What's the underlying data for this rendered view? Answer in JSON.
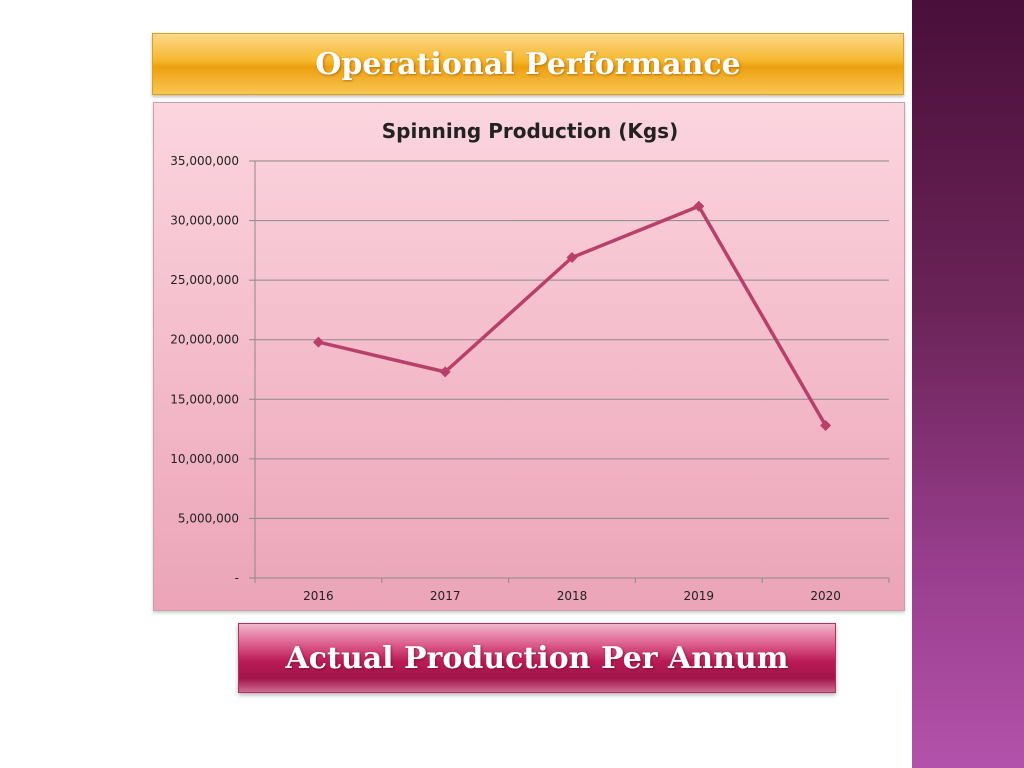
{
  "slide": {
    "title": "Operational Performance",
    "footer": "Actual Production Per Annum"
  },
  "colors": {
    "series": "#b8406a",
    "grid": "#8a8a8a",
    "axis_text": "#222222"
  },
  "chart_data": {
    "type": "line",
    "title": "Spinning Production (Kgs)",
    "categories": [
      "2016",
      "2017",
      "2018",
      "2019",
      "2020"
    ],
    "series": [
      {
        "name": "Spinning Production (Kgs)",
        "values": [
          19800000,
          17300000,
          26900000,
          31200000,
          12800000
        ]
      }
    ],
    "ylim": [
      0,
      35000000
    ],
    "yticks": [
      0,
      5000000,
      10000000,
      15000000,
      20000000,
      25000000,
      30000000,
      35000000
    ],
    "ytick_labels": [
      "-",
      "5,000,000",
      "10,000,000",
      "15,000,000",
      "20,000,000",
      "25,000,000",
      "30,000,000",
      "35,000,000"
    ],
    "xlabel": "",
    "ylabel": "",
    "grid": true,
    "legend": "none",
    "marker": "diamond"
  }
}
